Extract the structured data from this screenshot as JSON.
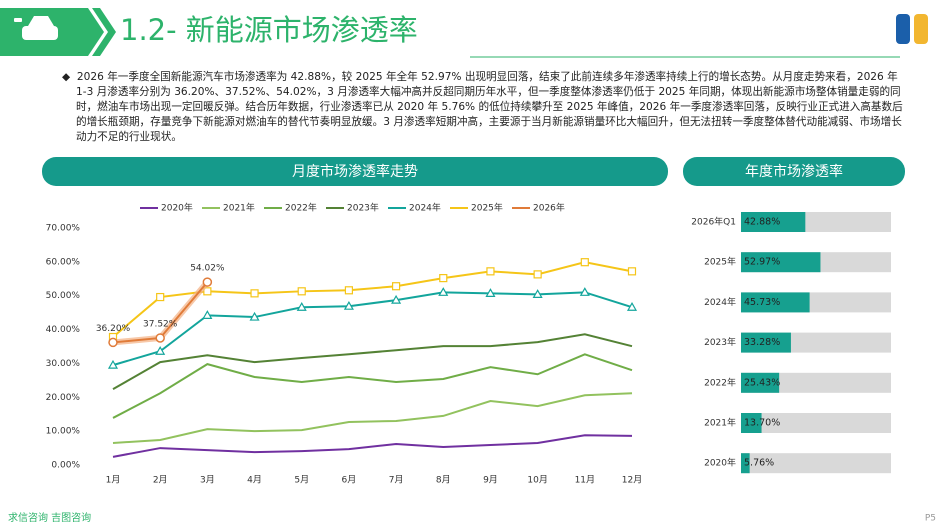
{
  "header": {
    "title": "1.2- 新能源市场渗透率"
  },
  "summary": "2026 年一季度全国新能源汽车市场渗透率为 42.88%，较 2025 年全年 52.97% 出现明显回落，结束了此前连续多年渗透率持续上行的增长态势。从月度走势来看，2026 年 1-3 月渗透率分别为 36.20%、37.52%、54.02%，3 月渗透率大幅冲高并反超同期历年水平，但一季度整体渗透率仍低于 2025 年同期，体现出新能源市场整体销量走弱的同时，燃油车市场出现一定回暖反弹。结合历年数据，行业渗透率已从 2020 年 5.76% 的低位持续攀升至 2025 年峰值，2026 年一季度渗透率回落，反映行业正式进入高基数后的增长瓶颈期，存量竞争下新能源对燃油车的替代节奏明显放缓。3 月渗透率短期冲高，主要源于当月新能源销量环比大幅回升，但无法扭转一季度整体替代动能减弱、市场增长动力不足的行业现状。",
  "footer": {
    "source": "求信咨询  吉图咨询",
    "page": "P5"
  },
  "chart_data": [
    {
      "type": "line",
      "title": "月度市场渗透率走势",
      "categories": [
        "1月",
        "2月",
        "3月",
        "4月",
        "5月",
        "6月",
        "7月",
        "8月",
        "9月",
        "10月",
        "11月",
        "12月"
      ],
      "ylim": [
        0,
        70
      ],
      "yticks": [
        {
          "value": 0,
          "label": "0.00%"
        },
        {
          "value": 10,
          "label": "10.00%"
        },
        {
          "value": 20,
          "label": "20.00%"
        },
        {
          "value": 30,
          "label": "30.00%"
        },
        {
          "value": 40,
          "label": "40.00%"
        },
        {
          "value": 50,
          "label": "50.00%"
        },
        {
          "value": 60,
          "label": "60.00%"
        },
        {
          "value": 70,
          "label": "70.00%"
        }
      ],
      "series": [
        {
          "name": "2020年",
          "color": "#7030a0",
          "values": [
            2.4,
            5.0,
            4.4,
            3.8,
            4.1,
            4.7,
            6.2,
            5.3,
            5.9,
            6.5,
            8.8,
            8.6
          ]
        },
        {
          "name": "2021年",
          "color": "#92c25e",
          "values": [
            6.5,
            7.4,
            10.6,
            10.0,
            10.3,
            12.7,
            13.0,
            14.5,
            18.9,
            17.4,
            20.6,
            21.2
          ]
        },
        {
          "name": "2022年",
          "color": "#70ad47",
          "values": [
            13.9,
            21.2,
            29.8,
            26.0,
            24.5,
            26.0,
            24.5,
            25.4,
            28.9,
            26.8,
            32.7,
            28.0
          ]
        },
        {
          "name": "2023年",
          "color": "#548235",
          "values": [
            22.4,
            30.4,
            32.4,
            30.4,
            31.6,
            32.7,
            33.9,
            35.1,
            35.1,
            36.3,
            38.6,
            35.1
          ]
        },
        {
          "name": "2024年",
          "color": "#13a59c",
          "marker": "triangle",
          "values": [
            29.5,
            33.6,
            44.2,
            43.7,
            46.6,
            46.9,
            48.7,
            51.0,
            50.7,
            50.4,
            51.0,
            46.6
          ]
        },
        {
          "name": "2025年",
          "color": "#f5c518",
          "marker": "square",
          "values": [
            37.8,
            49.6,
            51.3,
            50.7,
            51.3,
            51.6,
            52.8,
            55.2,
            57.2,
            56.3,
            59.9,
            57.2
          ]
        },
        {
          "name": "2026年",
          "color": "#e07b39",
          "marker": "circle",
          "values": [
            36.2,
            37.52,
            54.02,
            null,
            null,
            null,
            null,
            null,
            null,
            null,
            null,
            null
          ],
          "value_labels": [
            "36.20%",
            "37.52%",
            "54.02%",
            null,
            null,
            null,
            null,
            null,
            null,
            null,
            null,
            null
          ]
        }
      ]
    },
    {
      "type": "hbar",
      "title": "年度市场渗透率",
      "categories": [
        "2026年Q1",
        "2025年",
        "2024年",
        "2023年",
        "2022年",
        "2021年",
        "2020年"
      ],
      "values": [
        42.88,
        52.97,
        45.73,
        33.28,
        25.43,
        13.7,
        5.76
      ],
      "value_labels": [
        "42.88%",
        "52.97%",
        "45.73%",
        "33.28%",
        "25.43%",
        "13.70%",
        "5.76%"
      ],
      "xlim": [
        0,
        100
      ],
      "color": "#16a08f",
      "track_color": "#d9d9d9"
    }
  ]
}
